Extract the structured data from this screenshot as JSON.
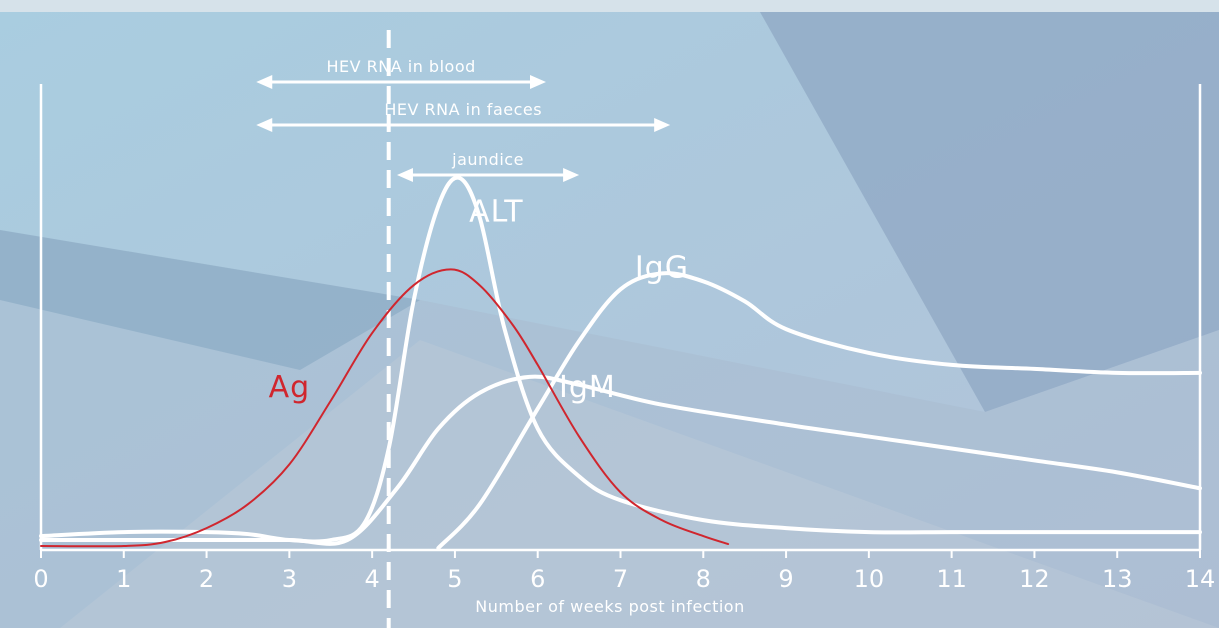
{
  "chart_data": {
    "type": "line",
    "xlabel": "Number of weeks post infection",
    "ylabel": "",
    "xlim": [
      0,
      14
    ],
    "x_ticks": [
      "0",
      "1",
      "2",
      "3",
      "4",
      "5",
      "6",
      "7",
      "8",
      "9",
      "10",
      "11",
      "12",
      "13",
      "14"
    ],
    "grid": false,
    "event_marker_week": 4.2,
    "intervals": [
      {
        "label": "HEV RNA in blood",
        "start": 2.6,
        "end": 6.1
      },
      {
        "label": "HEV RNA in faeces",
        "start": 2.6,
        "end": 7.6
      },
      {
        "label": "jaundice",
        "start": 4.3,
        "end": 6.5
      }
    ],
    "series": [
      {
        "name": "ALT",
        "color": "#ffffff",
        "points": [
          [
            0,
            0.03
          ],
          [
            1,
            0.04
          ],
          [
            2,
            0.04
          ],
          [
            2.5,
            0.035
          ],
          [
            3,
            0.02
          ],
          [
            3.5,
            0.02
          ],
          [
            3.9,
            0.06
          ],
          [
            4.2,
            0.25
          ],
          [
            4.5,
            0.62
          ],
          [
            4.8,
            0.86
          ],
          [
            5.05,
            0.93
          ],
          [
            5.3,
            0.83
          ],
          [
            5.6,
            0.55
          ],
          [
            6,
            0.3
          ],
          [
            6.5,
            0.18
          ],
          [
            7,
            0.12
          ],
          [
            8,
            0.07
          ],
          [
            9,
            0.05
          ],
          [
            10,
            0.04
          ],
          [
            11,
            0.04
          ],
          [
            12,
            0.04
          ],
          [
            13,
            0.04
          ],
          [
            14,
            0.04
          ]
        ]
      },
      {
        "name": "IgM",
        "color": "#ffffff",
        "points": [
          [
            0,
            0.02
          ],
          [
            2,
            0.02
          ],
          [
            3,
            0.02
          ],
          [
            3.7,
            0.02
          ],
          [
            4.3,
            0.15
          ],
          [
            4.8,
            0.3
          ],
          [
            5.3,
            0.39
          ],
          [
            5.9,
            0.43
          ],
          [
            6.5,
            0.41
          ],
          [
            7.5,
            0.36
          ],
          [
            9,
            0.31
          ],
          [
            10,
            0.28
          ],
          [
            11,
            0.25
          ],
          [
            12,
            0.22
          ],
          [
            13,
            0.19
          ],
          [
            14,
            0.15
          ]
        ]
      },
      {
        "name": "IgG",
        "color": "#ffffff",
        "points": [
          [
            4.8,
            0
          ],
          [
            5.3,
            0.11
          ],
          [
            6,
            0.35
          ],
          [
            6.5,
            0.52
          ],
          [
            7,
            0.65
          ],
          [
            7.5,
            0.69
          ],
          [
            8,
            0.67
          ],
          [
            8.5,
            0.62
          ],
          [
            9,
            0.55
          ],
          [
            10,
            0.49
          ],
          [
            11,
            0.46
          ],
          [
            12,
            0.45
          ],
          [
            13,
            0.44
          ],
          [
            14,
            0.44
          ]
        ]
      },
      {
        "name": "Ag",
        "color": "#d0262e",
        "points": [
          [
            0,
            0.005
          ],
          [
            1,
            0.005
          ],
          [
            1.5,
            0.015
          ],
          [
            2,
            0.05
          ],
          [
            2.5,
            0.11
          ],
          [
            3,
            0.21
          ],
          [
            3.5,
            0.37
          ],
          [
            4,
            0.54
          ],
          [
            4.5,
            0.66
          ],
          [
            4.95,
            0.7
          ],
          [
            5.3,
            0.66
          ],
          [
            5.7,
            0.56
          ],
          [
            6,
            0.46
          ],
          [
            6.5,
            0.28
          ],
          [
            7,
            0.14
          ],
          [
            7.5,
            0.07
          ],
          [
            8,
            0.03
          ],
          [
            8.3,
            0.01
          ]
        ]
      }
    ]
  }
}
